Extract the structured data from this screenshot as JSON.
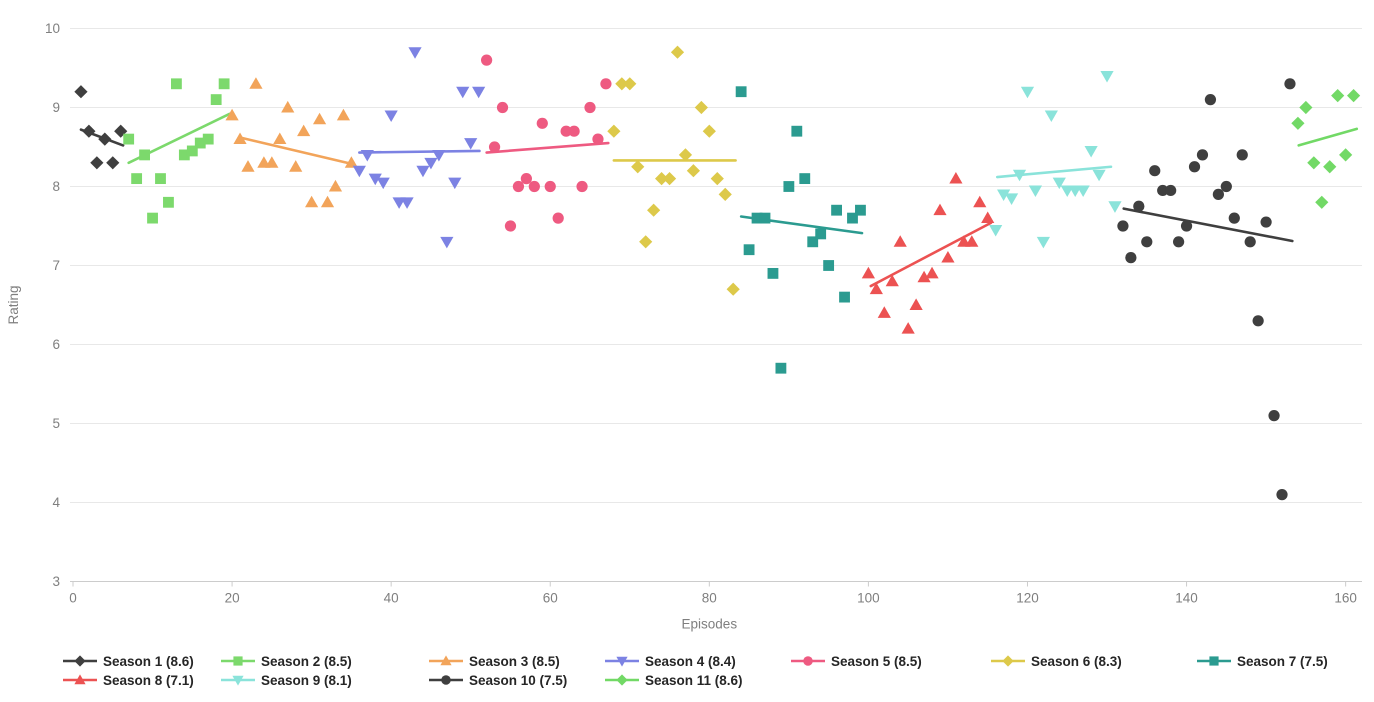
{
  "chart_data": {
    "type": "scatter",
    "title": "",
    "xlabel": "Episodes",
    "ylabel": "Rating",
    "x_ticks": [
      0,
      20,
      40,
      60,
      80,
      100,
      120,
      140,
      160
    ],
    "y_ticks": [
      3,
      4,
      5,
      6,
      7,
      8,
      9,
      10
    ],
    "xlim": [
      0,
      163.7
    ],
    "ylim": [
      3,
      10
    ],
    "grid": "horizontal-only",
    "legend_position": "bottom",
    "axis_color": "#cccccc",
    "gridline_color": "#e8e8e8",
    "seasons": [
      {
        "name": "Season 1 (8.6)",
        "average": 8.6,
        "color": "#3f3f3f",
        "marker": "diamond",
        "points": [
          [
            1,
            9.2
          ],
          [
            2,
            8.7
          ],
          [
            3,
            8.3
          ],
          [
            4,
            8.6
          ],
          [
            5,
            8.3
          ],
          [
            6,
            8.7
          ]
        ],
        "trend": {
          "x1": 1,
          "y1": 8.72,
          "x2": 6.3,
          "y2": 8.52
        }
      },
      {
        "name": "Season 2 (8.5)",
        "average": 8.5,
        "color": "#7cd96c",
        "marker": "square",
        "points": [
          [
            7,
            8.6
          ],
          [
            8,
            8.1
          ],
          [
            9,
            8.4
          ],
          [
            10,
            7.6
          ],
          [
            11,
            8.1
          ],
          [
            12,
            7.8
          ],
          [
            13,
            9.3
          ],
          [
            14,
            8.4
          ],
          [
            15,
            8.45
          ],
          [
            16,
            8.55
          ],
          [
            17,
            8.6
          ],
          [
            18,
            9.1
          ],
          [
            19,
            9.3
          ]
        ],
        "trend": {
          "x1": 7,
          "y1": 8.3,
          "x2": 19.7,
          "y2": 8.92
        }
      },
      {
        "name": "Season 3 (8.5)",
        "average": 8.5,
        "color": "#f2a45a",
        "marker": "triangle-up",
        "points": [
          [
            20,
            8.9
          ],
          [
            21,
            8.6
          ],
          [
            22,
            8.25
          ],
          [
            23,
            9.3
          ],
          [
            24,
            8.3
          ],
          [
            25,
            8.3
          ],
          [
            26,
            8.6
          ],
          [
            27,
            9.0
          ],
          [
            28,
            8.25
          ],
          [
            29,
            8.7
          ],
          [
            30,
            7.8
          ],
          [
            31,
            8.85
          ],
          [
            32,
            7.8
          ],
          [
            33,
            8.0
          ],
          [
            34,
            8.9
          ],
          [
            35,
            8.3
          ]
        ],
        "trend": {
          "x1": 21,
          "y1": 8.62,
          "x2": 35.3,
          "y2": 8.28
        }
      },
      {
        "name": "Season 4 (8.4)",
        "average": 8.4,
        "color": "#7c82e3",
        "marker": "triangle-down",
        "points": [
          [
            36,
            8.2
          ],
          [
            37,
            8.4
          ],
          [
            38,
            8.1
          ],
          [
            39,
            8.05
          ],
          [
            40,
            8.9
          ],
          [
            41,
            7.8
          ],
          [
            42,
            7.8
          ],
          [
            43,
            9.7
          ],
          [
            44,
            8.2
          ],
          [
            45,
            8.3
          ],
          [
            46,
            8.4
          ],
          [
            47,
            7.3
          ],
          [
            48,
            8.05
          ],
          [
            49,
            9.2
          ],
          [
            50,
            8.55
          ],
          [
            51,
            9.2
          ]
        ],
        "trend": {
          "x1": 36,
          "y1": 8.43,
          "x2": 51.1,
          "y2": 8.45
        }
      },
      {
        "name": "Season 5 (8.5)",
        "average": 8.5,
        "color": "#ee5a81",
        "marker": "circle",
        "points": [
          [
            52,
            9.6
          ],
          [
            53,
            8.5
          ],
          [
            54,
            9.0
          ],
          [
            55,
            7.5
          ],
          [
            56,
            8.0
          ],
          [
            57,
            8.1
          ],
          [
            58,
            8.0
          ],
          [
            59,
            8.8
          ],
          [
            60,
            8.0
          ],
          [
            61,
            7.6
          ],
          [
            62,
            8.7
          ],
          [
            63,
            8.7
          ],
          [
            64,
            8.0
          ],
          [
            65,
            9.0
          ],
          [
            66,
            8.6
          ],
          [
            67,
            9.3
          ]
        ],
        "trend": {
          "x1": 52,
          "y1": 8.43,
          "x2": 67.3,
          "y2": 8.55
        }
      },
      {
        "name": "Season 6 (8.3)",
        "average": 8.3,
        "color": "#ddc94a",
        "marker": "diamond",
        "points": [
          [
            68,
            8.7
          ],
          [
            69,
            9.3
          ],
          [
            70,
            9.3
          ],
          [
            71,
            8.25
          ],
          [
            72,
            7.3
          ],
          [
            73,
            7.7
          ],
          [
            74,
            8.1
          ],
          [
            75,
            8.1
          ],
          [
            76,
            9.7
          ],
          [
            77,
            8.4
          ],
          [
            78,
            8.2
          ],
          [
            79,
            9.0
          ],
          [
            80,
            8.7
          ],
          [
            81,
            8.1
          ],
          [
            82,
            7.9
          ],
          [
            83,
            6.7
          ]
        ],
        "trend": {
          "x1": 68,
          "y1": 8.33,
          "x2": 83.3,
          "y2": 8.33
        }
      },
      {
        "name": "Season 7 (7.5)",
        "average": 7.5,
        "color": "#2b9b90",
        "marker": "square",
        "points": [
          [
            84,
            9.2
          ],
          [
            85,
            7.2
          ],
          [
            86,
            7.6
          ],
          [
            87,
            7.6
          ],
          [
            88,
            6.9
          ],
          [
            89,
            5.7
          ],
          [
            90,
            8.0
          ],
          [
            91,
            8.7
          ],
          [
            92,
            8.1
          ],
          [
            93,
            7.3
          ],
          [
            94,
            7.4
          ],
          [
            95,
            7.0
          ],
          [
            96,
            7.7
          ],
          [
            97,
            6.6
          ],
          [
            98,
            7.6
          ],
          [
            99,
            7.7
          ]
        ],
        "trend": {
          "x1": 84,
          "y1": 7.62,
          "x2": 99.2,
          "y2": 7.41
        }
      },
      {
        "name": "Season 8 (7.1)",
        "average": 7.1,
        "color": "#ec5252",
        "marker": "triangle-up",
        "points": [
          [
            100,
            6.9
          ],
          [
            101,
            6.7
          ],
          [
            102,
            6.4
          ],
          [
            103,
            6.8
          ],
          [
            104,
            7.3
          ],
          [
            105,
            6.2
          ],
          [
            106,
            6.5
          ],
          [
            107,
            6.85
          ],
          [
            108,
            6.9
          ],
          [
            109,
            7.7
          ],
          [
            110,
            7.1
          ],
          [
            111,
            8.1
          ],
          [
            112,
            7.3
          ],
          [
            113,
            7.3
          ],
          [
            114,
            7.8
          ],
          [
            115,
            7.6
          ]
        ],
        "trend": {
          "x1": 100.3,
          "y1": 6.74,
          "x2": 115.4,
          "y2": 7.54
        }
      },
      {
        "name": "Season 9 (8.1)",
        "average": 8.1,
        "color": "#8ae3da",
        "marker": "triangle-down",
        "points": [
          [
            116,
            7.45
          ],
          [
            117,
            7.9
          ],
          [
            118,
            7.85
          ],
          [
            119,
            8.15
          ],
          [
            120,
            9.2
          ],
          [
            121,
            7.95
          ],
          [
            122,
            7.3
          ],
          [
            123,
            8.9
          ],
          [
            124,
            8.05
          ],
          [
            125,
            7.95
          ],
          [
            126,
            7.95
          ],
          [
            127,
            7.95
          ],
          [
            128,
            8.45
          ],
          [
            129,
            8.15
          ],
          [
            130,
            9.4
          ],
          [
            131,
            7.75
          ]
        ],
        "trend": {
          "x1": 116.2,
          "y1": 8.12,
          "x2": 130.5,
          "y2": 8.25
        }
      },
      {
        "name": "Season 10 (7.5)",
        "average": 7.5,
        "color": "#3f3f3f",
        "marker": "circle",
        "points": [
          [
            132,
            7.5
          ],
          [
            133,
            7.1
          ],
          [
            134,
            7.75
          ],
          [
            135,
            7.3
          ],
          [
            136,
            8.2
          ],
          [
            137,
            7.95
          ],
          [
            138,
            7.95
          ],
          [
            139,
            7.3
          ],
          [
            140,
            7.5
          ],
          [
            141,
            8.25
          ],
          [
            142,
            8.4
          ],
          [
            143,
            9.1
          ],
          [
            144,
            7.9
          ],
          [
            145,
            8.0
          ],
          [
            146,
            7.6
          ],
          [
            147,
            8.4
          ],
          [
            148,
            7.3
          ],
          [
            149,
            6.3
          ],
          [
            150,
            7.55
          ],
          [
            151,
            5.1
          ],
          [
            152,
            4.1
          ],
          [
            153,
            9.3
          ]
        ],
        "trend": {
          "x1": 132.1,
          "y1": 7.72,
          "x2": 153.3,
          "y2": 7.31
        }
      },
      {
        "name": "Season 11 (8.6)",
        "average": 8.6,
        "color": "#72d966",
        "marker": "diamond",
        "points": [
          [
            154,
            8.8
          ],
          [
            155,
            9.0
          ],
          [
            156,
            8.3
          ],
          [
            157,
            7.8
          ],
          [
            158,
            8.25
          ],
          [
            159,
            9.15
          ],
          [
            160,
            8.4
          ],
          [
            161,
            9.15
          ]
        ],
        "trend": {
          "x1": 154.1,
          "y1": 8.52,
          "x2": 161.4,
          "y2": 8.73
        }
      }
    ]
  }
}
